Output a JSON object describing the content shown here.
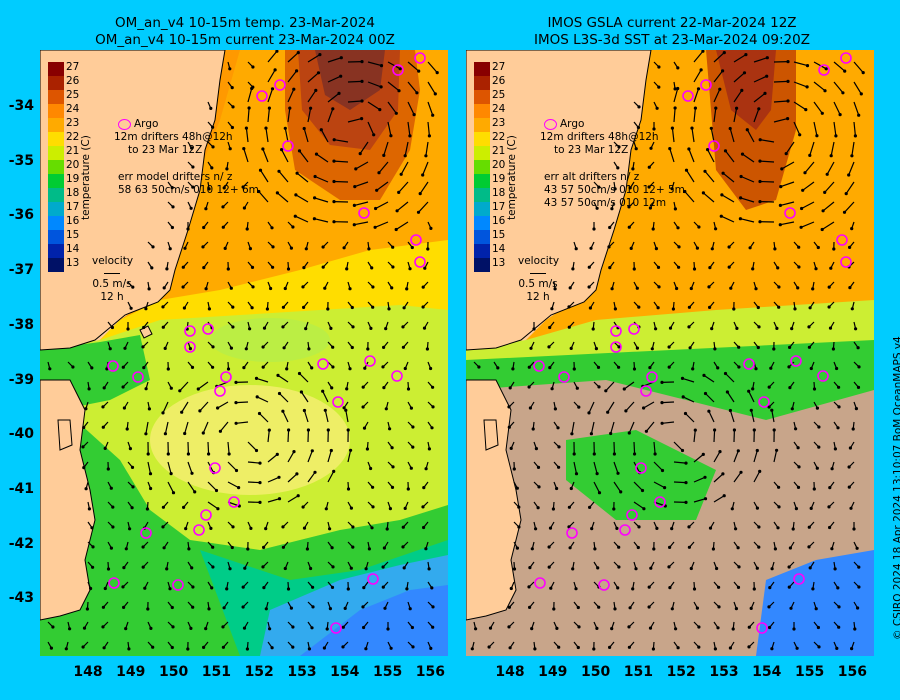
{
  "left": {
    "title_line1": "OM_an_v4  10-15m temp. 23-Mar-2024",
    "title_line2": "OM_an_v4  10-15m current 23-Mar-2024 00Z",
    "legend": {
      "argo": "Argo",
      "drifters": "drifters 48h@12h",
      "drifters_sub": "to 23 Mar 12Z",
      "drift_prefix": "12m",
      "stats_header": "err model drifters n/ z",
      "stats_line1": "58 63 50cm/s 010 12+ 6m",
      "velocity_title": "velocity",
      "velocity_speed": "0.5 m/s",
      "velocity_time": "12 h"
    }
  },
  "right": {
    "title_line1": "IMOS GSLA current 22-Mar-2024 12Z",
    "title_line2": "IMOS L3S-3d SST at 23-Mar-2024 09:20Z",
    "legend": {
      "argo": "Argo",
      "drifters": "drifters 48h@12h",
      "drifters_sub": "to 23 Mar 12Z",
      "drift_prefix": "12m",
      "stats_header": "err alt drifters n/ z",
      "stats_line1": "43 57 50cm/s 010 12+ 5m",
      "stats_line2": "43 57 50cm/s 010 12m",
      "velocity_title": "velocity",
      "velocity_speed": "0.5 m/s",
      "velocity_time": "12 h"
    }
  },
  "colorbar": {
    "label": "temperature (C)",
    "ticks": [
      "27",
      "26",
      "25",
      "24",
      "23",
      "22",
      "21",
      "20",
      "19",
      "18",
      "17",
      "16",
      "15",
      "14",
      "13"
    ]
  },
  "y_axis": [
    "-34",
    "-35",
    "-36",
    "-37",
    "-38",
    "-39",
    "-40",
    "-41",
    "-42",
    "-43"
  ],
  "x_axis": [
    "148",
    "149",
    "150",
    "151",
    "152",
    "153",
    "154",
    "155",
    "156"
  ],
  "credit": "© CSIRO 2024   18 Apr 2024 13:10:07 BoM OceanMAPS v4",
  "colors": {
    "background": "#00ccff",
    "land": "#ffcc99",
    "argo": "#ff00ff",
    "cloud": "#c8a58a"
  }
}
